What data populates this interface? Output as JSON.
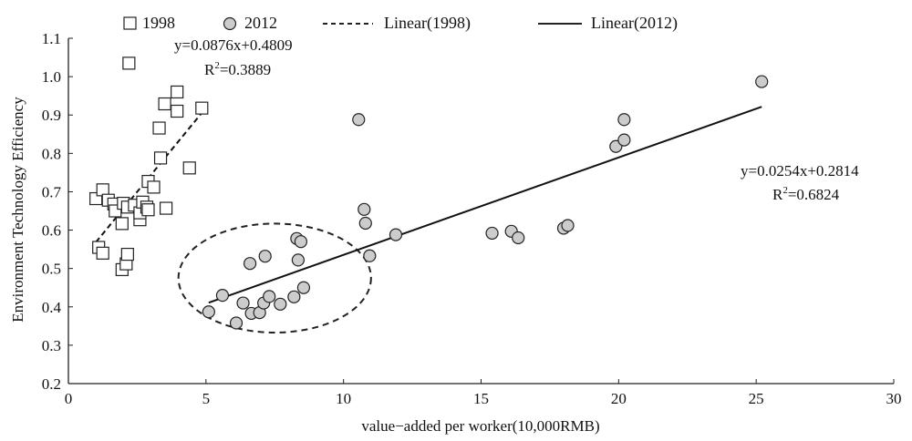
{
  "chart_data": {
    "type": "scatter",
    "xlabel": "value−added per worker(10,000RMB)",
    "ylabel": "Environment Technology Efficiency",
    "xlim": [
      0,
      30
    ],
    "ylim": [
      0.2,
      1.1
    ],
    "xticks": [
      "0",
      "5",
      "10",
      "15",
      "20",
      "25",
      "30"
    ],
    "yticks": [
      "0.2",
      "0.3",
      "0.4",
      "0.5",
      "0.6",
      "0.7",
      "0.8",
      "0.9",
      "1.0",
      "1.1"
    ],
    "legend_position": "top",
    "legend": [
      {
        "label": "1998",
        "marker": "open-square"
      },
      {
        "label": "2012",
        "marker": "gray-circle"
      },
      {
        "label": "Linear(1998)",
        "marker": "dashed-line"
      },
      {
        "label": "Linear(2012)",
        "marker": "solid-line"
      }
    ],
    "series": [
      {
        "name": "1998",
        "marker": "square",
        "fill": "#ffffff",
        "points": [
          [
            1.0,
            0.682
          ],
          [
            1.1,
            0.555
          ],
          [
            1.25,
            0.54
          ],
          [
            1.25,
            0.705
          ],
          [
            1.45,
            0.678
          ],
          [
            1.65,
            0.668
          ],
          [
            1.7,
            0.65
          ],
          [
            1.95,
            0.497
          ],
          [
            1.95,
            0.617
          ],
          [
            2.0,
            0.67
          ],
          [
            2.1,
            0.512
          ],
          [
            2.15,
            0.537
          ],
          [
            2.15,
            0.66
          ],
          [
            2.2,
            1.035
          ],
          [
            2.4,
            0.665
          ],
          [
            2.6,
            0.627
          ],
          [
            2.6,
            0.645
          ],
          [
            2.7,
            0.673
          ],
          [
            2.85,
            0.66
          ],
          [
            2.9,
            0.653
          ],
          [
            2.9,
            0.727
          ],
          [
            3.1,
            0.712
          ],
          [
            3.3,
            0.866
          ],
          [
            3.35,
            0.788
          ],
          [
            3.5,
            0.929
          ],
          [
            3.55,
            0.657
          ],
          [
            3.95,
            0.91
          ],
          [
            3.95,
            0.96
          ],
          [
            4.4,
            0.762
          ],
          [
            4.85,
            0.918
          ]
        ]
      },
      {
        "name": "2012",
        "marker": "circle",
        "fill": "#cccccc",
        "points": [
          [
            5.1,
            0.387
          ],
          [
            5.6,
            0.43
          ],
          [
            6.1,
            0.358
          ],
          [
            6.35,
            0.41
          ],
          [
            6.6,
            0.513
          ],
          [
            6.65,
            0.383
          ],
          [
            6.95,
            0.385
          ],
          [
            7.1,
            0.41
          ],
          [
            7.15,
            0.532
          ],
          [
            7.3,
            0.427
          ],
          [
            7.7,
            0.407
          ],
          [
            8.2,
            0.426
          ],
          [
            8.3,
            0.578
          ],
          [
            8.35,
            0.522
          ],
          [
            8.45,
            0.57
          ],
          [
            8.55,
            0.45
          ],
          [
            10.55,
            0.888
          ],
          [
            10.75,
            0.654
          ],
          [
            10.8,
            0.618
          ],
          [
            10.95,
            0.533
          ],
          [
            11.9,
            0.588
          ],
          [
            15.4,
            0.592
          ],
          [
            16.1,
            0.597
          ],
          [
            16.35,
            0.58
          ],
          [
            18.0,
            0.605
          ],
          [
            18.15,
            0.612
          ],
          [
            19.9,
            0.818
          ],
          [
            20.2,
            0.835
          ],
          [
            20.2,
            0.888
          ],
          [
            25.2,
            0.987
          ]
        ]
      }
    ],
    "trendlines": [
      {
        "name": "Linear(1998)",
        "style": "dashed",
        "slope": 0.0876,
        "intercept": 0.4809,
        "x_range": [
          1.0,
          4.85
        ],
        "equation": "y=0.0876x+0.4809",
        "r2": "=0.3889"
      },
      {
        "name": "Linear(2012)",
        "style": "solid",
        "slope": 0.0254,
        "intercept": 0.2814,
        "x_range": [
          5.1,
          25.2
        ],
        "equation": "y=0.0254x+0.2814",
        "r2": "=0.6824"
      }
    ],
    "annotation_ellipse": {
      "cx": 7.5,
      "cy": 0.475,
      "rx": 3.5,
      "ry": 0.142,
      "style": "dashed"
    }
  }
}
